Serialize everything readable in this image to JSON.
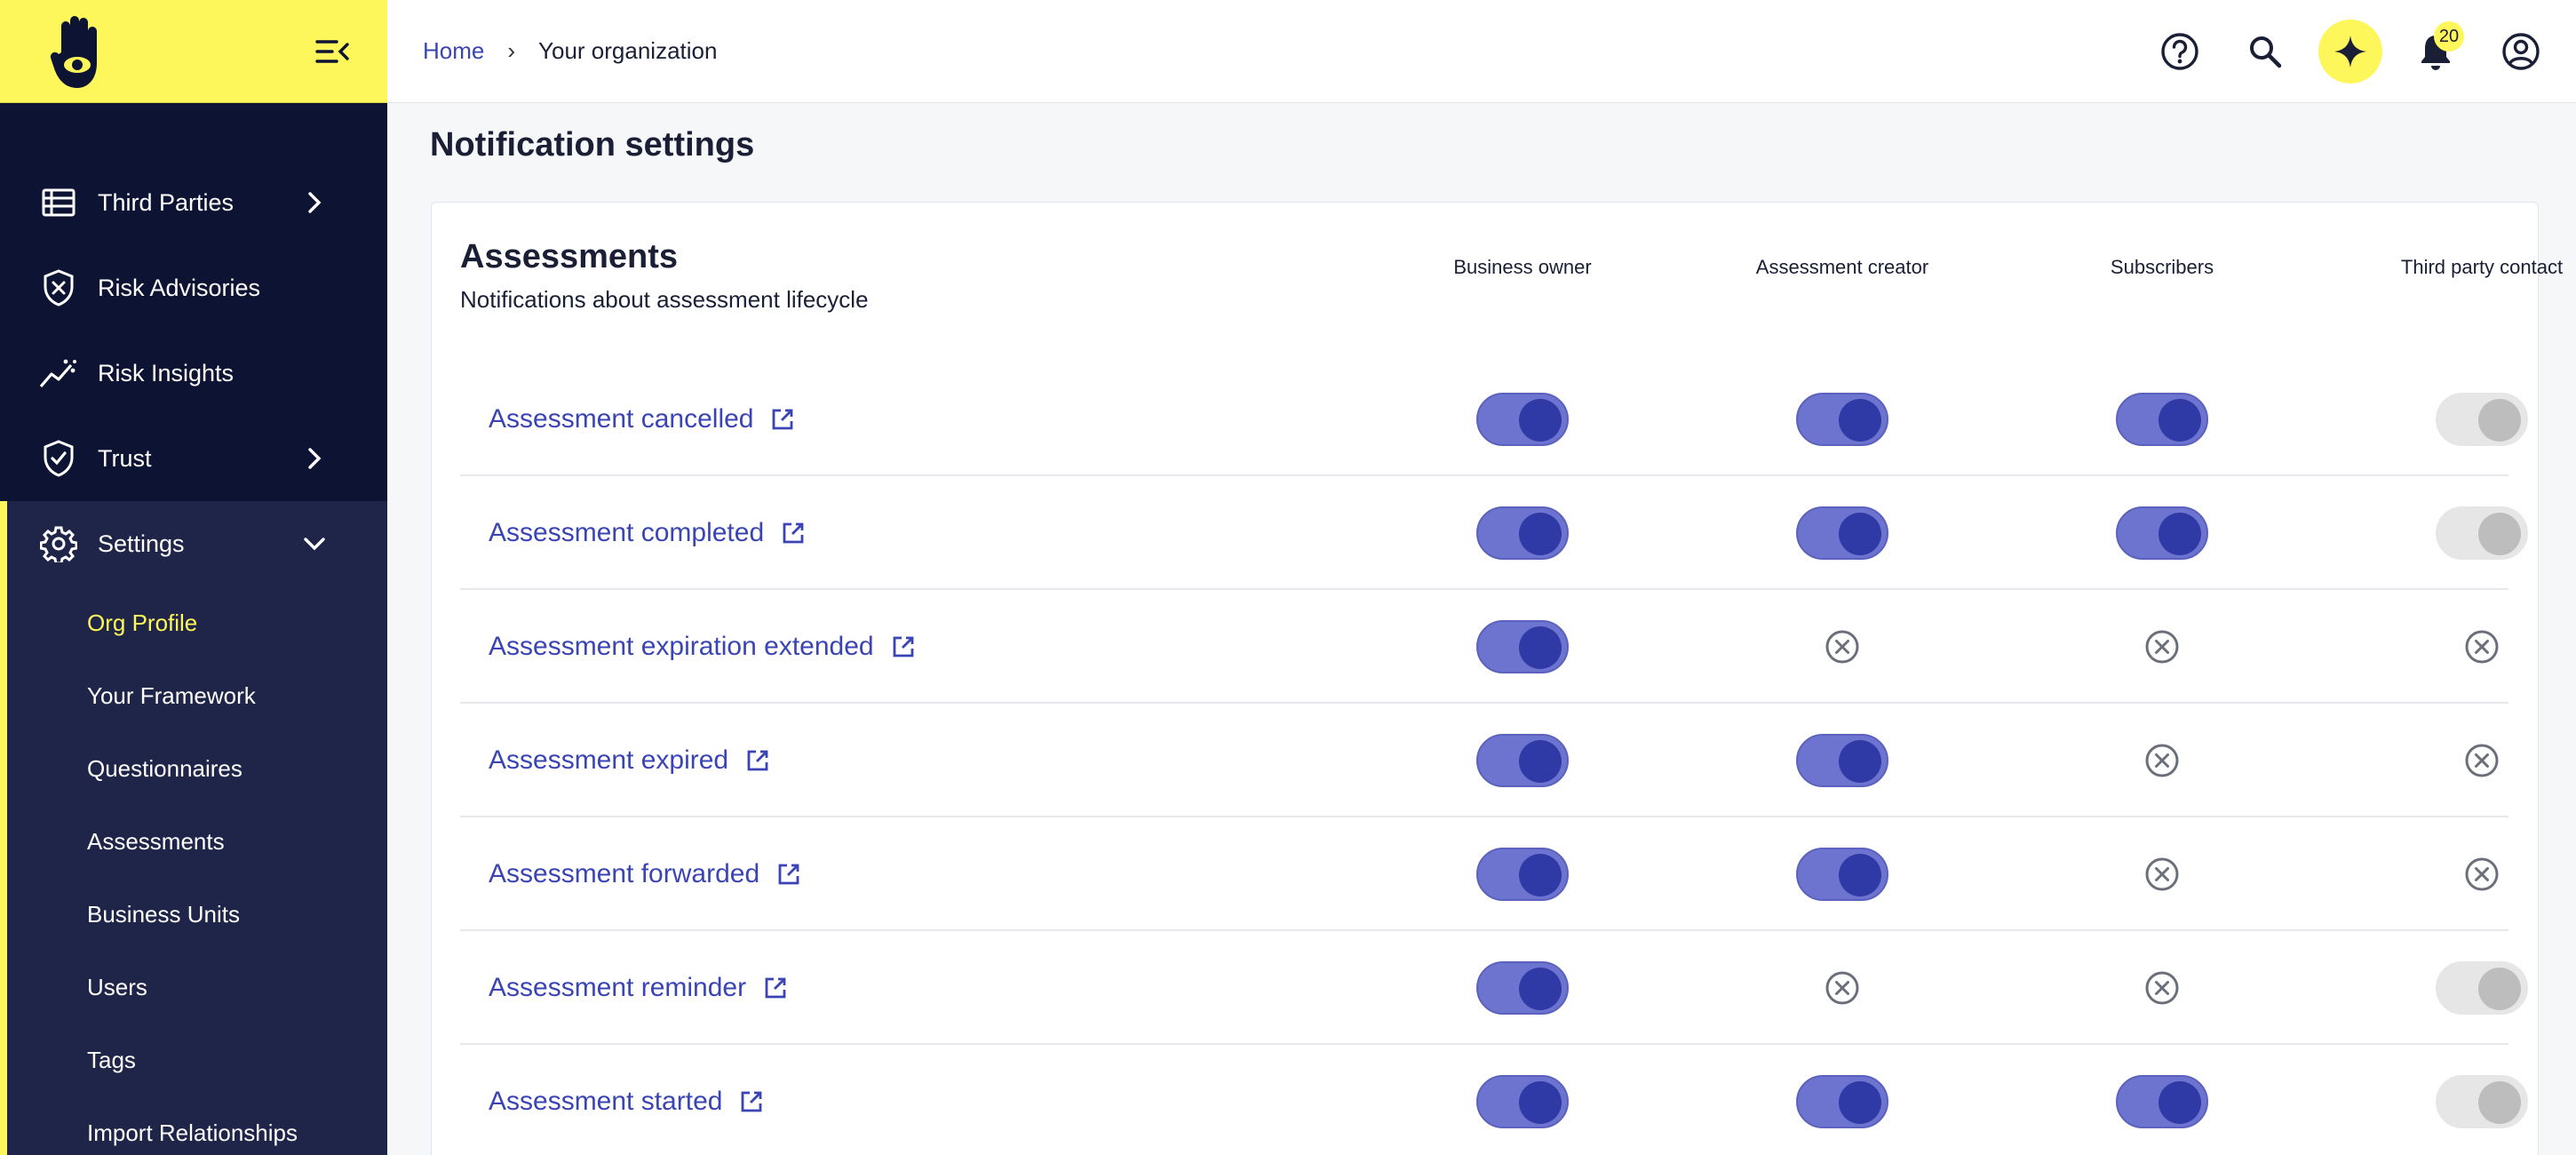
{
  "breadcrumb": {
    "home": "Home",
    "separator": "›",
    "current": "Your organization"
  },
  "notifications": {
    "count": "20"
  },
  "sidebar": {
    "items": [
      {
        "label": "Third Parties",
        "icon": "list-icon",
        "has_chevron": true
      },
      {
        "label": "Risk Advisories",
        "icon": "shield-x-icon",
        "has_chevron": false
      },
      {
        "label": "Risk Insights",
        "icon": "trend-icon",
        "has_chevron": false
      },
      {
        "label": "Trust",
        "icon": "shield-check-icon",
        "has_chevron": true
      }
    ],
    "settings": {
      "label": "Settings",
      "subitems": [
        {
          "label": "Org Profile",
          "active": true
        },
        {
          "label": "Your Framework"
        },
        {
          "label": "Questionnaires"
        },
        {
          "label": "Assessments"
        },
        {
          "label": "Business Units"
        },
        {
          "label": "Users"
        },
        {
          "label": "Tags"
        },
        {
          "label": "Import Relationships"
        }
      ]
    }
  },
  "page": {
    "title": "Notification settings"
  },
  "section": {
    "title": "Assessments",
    "subtitle": "Notifications about assessment lifecycle",
    "columns": [
      "Business owner",
      "Assessment creator",
      "Subscribers",
      "Third party contact"
    ],
    "rows": [
      {
        "label": "Assessment cancelled",
        "states": [
          "on",
          "on",
          "on",
          "disabled"
        ]
      },
      {
        "label": "Assessment completed",
        "states": [
          "on",
          "on",
          "on",
          "disabled"
        ]
      },
      {
        "label": "Assessment expiration extended",
        "states": [
          "on",
          "na",
          "na",
          "na"
        ]
      },
      {
        "label": "Assessment expired",
        "states": [
          "on",
          "on",
          "na",
          "na"
        ]
      },
      {
        "label": "Assessment forwarded",
        "states": [
          "on",
          "on",
          "na",
          "na"
        ]
      },
      {
        "label": "Assessment reminder",
        "states": [
          "on",
          "na",
          "na",
          "disabled"
        ]
      },
      {
        "label": "Assessment started",
        "states": [
          "on",
          "on",
          "on",
          "disabled"
        ]
      }
    ]
  },
  "colors": {
    "brand_yellow": "#fdf75b",
    "sidebar_bg": "#0d1433",
    "link_blue": "#3a44b4",
    "toggle_on": "#6c74cf"
  }
}
